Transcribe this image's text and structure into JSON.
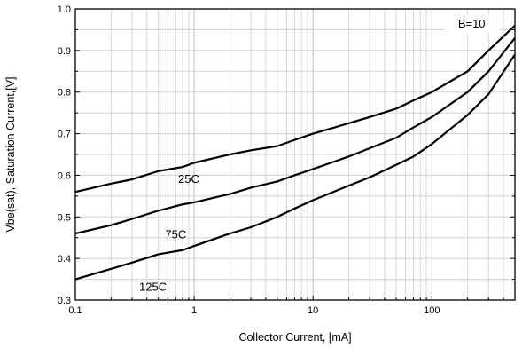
{
  "chart_data": {
    "type": "line",
    "title": "",
    "xlabel": "Collector Current, [mA]",
    "ylabel": "Vbe(sat), Saturation Current,[V]",
    "xscale": "log",
    "xlim": [
      0.1,
      500
    ],
    "ylim": [
      0.3,
      1.0
    ],
    "grid": true,
    "x_ticks": [
      0.1,
      1,
      10,
      100
    ],
    "x_tick_labels": [
      "0.1",
      "1",
      "10",
      "100"
    ],
    "y_ticks": [
      0.3,
      0.4,
      0.5,
      0.6,
      0.7,
      0.8,
      0.9,
      1.0
    ],
    "y_tick_labels": [
      "0.3",
      "0.4",
      "0.5",
      "0.6",
      "0.7",
      "0.8",
      "0.9",
      "1.0"
    ],
    "annotations": [
      "B=10"
    ],
    "series": [
      {
        "name": "25C",
        "x": [
          0.1,
          0.2,
          0.3,
          0.5,
          0.8,
          1,
          2,
          3,
          5,
          7,
          10,
          20,
          30,
          50,
          70,
          100,
          200,
          300,
          500
        ],
        "y": [
          0.56,
          0.58,
          0.59,
          0.61,
          0.62,
          0.63,
          0.65,
          0.66,
          0.67,
          0.685,
          0.7,
          0.725,
          0.74,
          0.76,
          0.78,
          0.8,
          0.85,
          0.9,
          0.96
        ]
      },
      {
        "name": "75C",
        "x": [
          0.1,
          0.2,
          0.3,
          0.5,
          0.8,
          1,
          2,
          3,
          5,
          7,
          10,
          20,
          30,
          50,
          70,
          100,
          200,
          300,
          500
        ],
        "y": [
          0.46,
          0.48,
          0.495,
          0.515,
          0.53,
          0.535,
          0.555,
          0.57,
          0.585,
          0.6,
          0.615,
          0.645,
          0.665,
          0.69,
          0.715,
          0.74,
          0.8,
          0.85,
          0.93
        ]
      },
      {
        "name": "125C",
        "x": [
          0.1,
          0.2,
          0.3,
          0.5,
          0.8,
          1,
          2,
          3,
          5,
          7,
          10,
          20,
          30,
          50,
          70,
          100,
          200,
          300,
          500
        ],
        "y": [
          0.35,
          0.375,
          0.39,
          0.41,
          0.42,
          0.43,
          0.46,
          0.475,
          0.5,
          0.52,
          0.54,
          0.575,
          0.595,
          0.625,
          0.645,
          0.675,
          0.745,
          0.795,
          0.89
        ]
      }
    ]
  }
}
